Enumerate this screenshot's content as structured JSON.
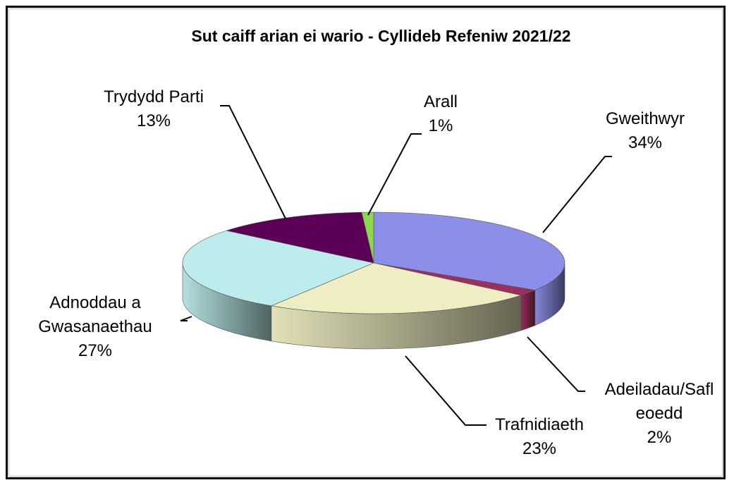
{
  "chart_data": {
    "type": "pie3d",
    "title": "Sut caiff arian ei wario - Cyllideb Refeniw 2021/22",
    "categories": [
      "Gweithwyr",
      "Adeiladau/Safleoedd",
      "Trafnidiaeth",
      "Adnoddau a Gwasanaethau",
      "Trydydd Parti",
      "Arall"
    ],
    "values": [
      34,
      2,
      23,
      27,
      13,
      1
    ],
    "value_labels": [
      "34%",
      "2%",
      "23%",
      "27%",
      "13%",
      "1%"
    ],
    "colors": [
      "#8b8fe8",
      "#9b2f5e",
      "#efedc2",
      "#bdecec",
      "#5c0057",
      "#8cd650"
    ]
  }
}
